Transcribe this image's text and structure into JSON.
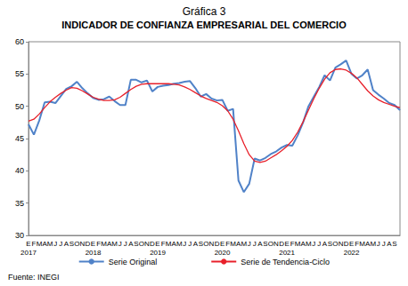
{
  "chart_data": {
    "type": "line",
    "title": "Gráfica 3",
    "subtitle": "INDICADOR DE CONFIANZA EMPRESARIAL DEL COMERCIO",
    "source": "Fuente: INEGI",
    "categories": [
      "E\n2017",
      "F",
      "M",
      "A",
      "M",
      "J",
      "J",
      "A",
      "S",
      "O",
      "N",
      "D",
      "E\n2018",
      "F",
      "M",
      "A",
      "M",
      "J",
      "J",
      "A",
      "S",
      "O",
      "N",
      "D",
      "E\n2019",
      "F",
      "M",
      "A",
      "M",
      "J",
      "J",
      "A",
      "S",
      "O",
      "N",
      "D",
      "E\n2020",
      "F",
      "M",
      "A",
      "M",
      "J",
      "J",
      "A",
      "S",
      "O",
      "N",
      "D",
      "E\n2021",
      "F",
      "M",
      "A",
      "M",
      "J",
      "J",
      "A",
      "S",
      "O",
      "N",
      "D",
      "E\n2022",
      "F",
      "M",
      "A",
      "M",
      "J",
      "J",
      "A",
      "S",
      null
    ],
    "series": [
      {
        "name": "Serie Original",
        "color": "#5082c8",
        "values": [
          47.2,
          45.6,
          47.8,
          50.6,
          50.7,
          50.5,
          51.6,
          52.7,
          53.1,
          53.8,
          52.8,
          52.0,
          51.3,
          51.0,
          51.1,
          51.5,
          50.8,
          50.2,
          50.2,
          54.1,
          54.1,
          53.7,
          54.0,
          52.3,
          53.0,
          53.2,
          53.3,
          53.5,
          53.6,
          53.8,
          53.9,
          52.8,
          51.5,
          51.9,
          51.2,
          50.9,
          51.0,
          49.3,
          49.6,
          38.5,
          36.7,
          38.0,
          41.9,
          41.6,
          42.0,
          42.6,
          43.0,
          43.6,
          44.0,
          43.9,
          45.5,
          47.5,
          50.0,
          51.5,
          53.0,
          54.8,
          54.0,
          56.0,
          56.5,
          57.1,
          55.0,
          54.3,
          54.8,
          55.7,
          52.5,
          51.8,
          51.2,
          50.5,
          50.2,
          49.4
        ]
      },
      {
        "name": "Serie de Tendencia-Ciclo",
        "color": "#e8202a",
        "values": [
          47.7,
          48.0,
          48.8,
          49.8,
          50.7,
          51.4,
          52.0,
          52.5,
          52.9,
          52.8,
          52.4,
          51.9,
          51.4,
          51.1,
          50.9,
          50.9,
          51.0,
          51.4,
          52.0,
          52.6,
          53.1,
          53.4,
          53.5,
          53.5,
          53.5,
          53.5,
          53.5,
          53.4,
          53.3,
          53.0,
          52.6,
          52.1,
          51.6,
          51.2,
          50.9,
          50.6,
          50.1,
          49.3,
          48.0,
          46.2,
          44.2,
          42.5,
          41.5,
          41.3,
          41.5,
          42.0,
          42.5,
          43.1,
          43.8,
          44.7,
          46.0,
          47.6,
          49.4,
          51.2,
          52.8,
          54.2,
          55.2,
          55.7,
          55.8,
          55.6,
          55.1,
          54.4,
          53.4,
          52.4,
          51.6,
          51.0,
          50.6,
          50.3,
          50.0,
          49.8
        ]
      }
    ],
    "ylim": [
      30,
      60
    ],
    "yticks": [
      30,
      35,
      40,
      45,
      50,
      55,
      60
    ],
    "grid": false,
    "legend": "bottom"
  }
}
